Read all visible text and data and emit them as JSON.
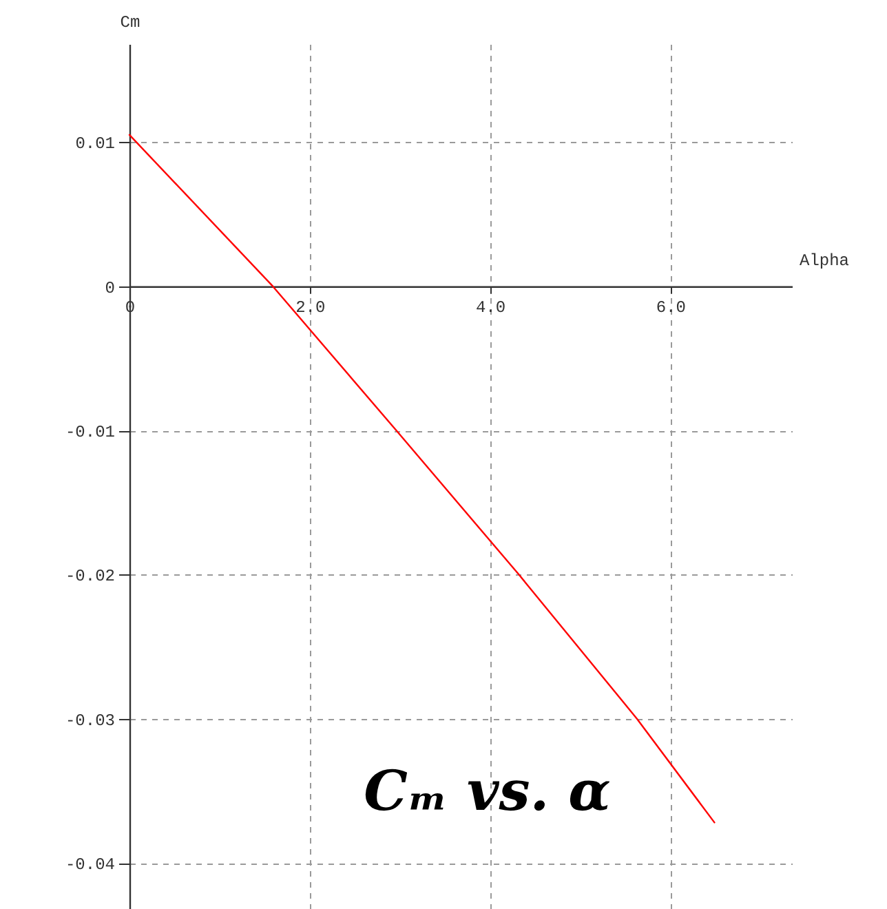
{
  "chart_data": {
    "type": "line",
    "xlabel": "Alpha",
    "ylabel": "Cm",
    "annotations": [
      "Cₘ vs. α"
    ],
    "x": [
      0,
      1.59,
      2.96,
      4.32,
      5.63,
      6.49
    ],
    "series": [
      {
        "color": "#ff0000",
        "values": [
          0.0105,
          0,
          -0.01,
          -0.02,
          -0.03,
          -0.0372
        ]
      }
    ],
    "xlim": [
      0,
      7.35
    ],
    "ylim": [
      -0.0432,
      0.0168
    ],
    "xticks": [
      0,
      {
        "value": 2,
        "label": "2.0"
      },
      {
        "value": 4,
        "label": "4.0"
      },
      {
        "value": 6,
        "label": "6.0"
      }
    ],
    "yticks": [
      0.01,
      0,
      -0.01,
      -0.02,
      -0.03,
      -0.04
    ],
    "grid": true,
    "line_style": "solid"
  }
}
